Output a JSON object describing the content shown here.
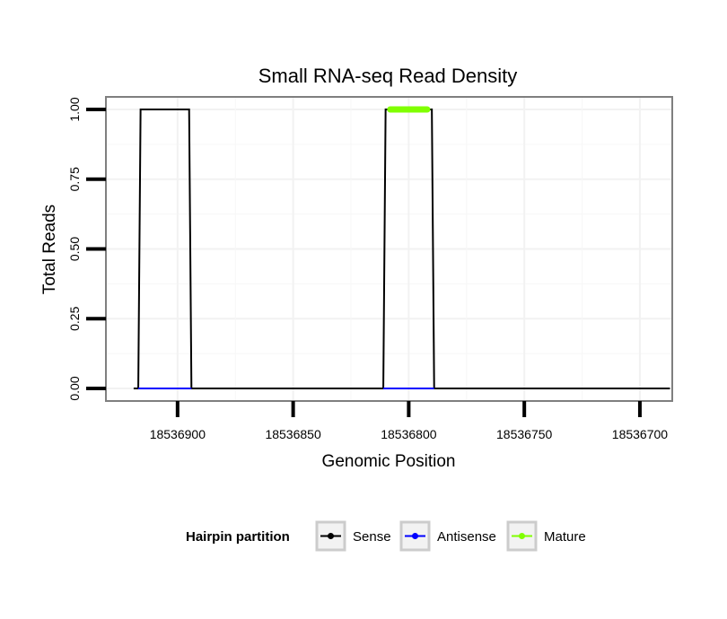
{
  "chart_data": {
    "type": "line",
    "title": "Small RNA-seq Read Density",
    "xlabel": "Genomic Position",
    "ylabel": "Total Reads",
    "xlim": [
      18536931,
      18536686
    ],
    "ylim": [
      -0.045,
      1.045
    ],
    "x_reversed": true,
    "x_ticks": [
      18536900,
      18536850,
      18536800,
      18536750,
      18536700
    ],
    "x_tick_labels": [
      "18536900",
      "18536850",
      "18536800",
      "18536750",
      "18536700"
    ],
    "y_ticks": [
      0,
      0.25,
      0.5,
      0.75,
      1
    ],
    "y_tick_labels": [
      "0.00",
      "0.25",
      "0.50",
      "0.75",
      "1.00"
    ],
    "grid": true,
    "series": [
      {
        "name": "Sense",
        "color": "#000000",
        "x": [
          18536919,
          18536917,
          18536916,
          18536895,
          18536894,
          18536811,
          18536810,
          18536790,
          18536789,
          18536687
        ],
        "y": [
          0,
          0,
          1,
          1,
          0,
          0,
          1,
          1,
          0,
          0
        ]
      },
      {
        "name": "Antisense",
        "color": "#0000ff",
        "x": [
          18536917,
          18536894,
          18536811,
          18536789
        ],
        "y": [
          0,
          0,
          0,
          0
        ],
        "segments": [
          [
            0,
            1
          ],
          [
            2,
            3
          ]
        ]
      },
      {
        "name": "Mature",
        "color": "#80ff00",
        "x": [
          18536808,
          18536792
        ],
        "y": [
          1,
          1
        ]
      }
    ],
    "legend": {
      "title": "Hairpin partition",
      "position": "bottom",
      "entries": [
        "Sense",
        "Antisense",
        "Mature"
      ]
    }
  }
}
